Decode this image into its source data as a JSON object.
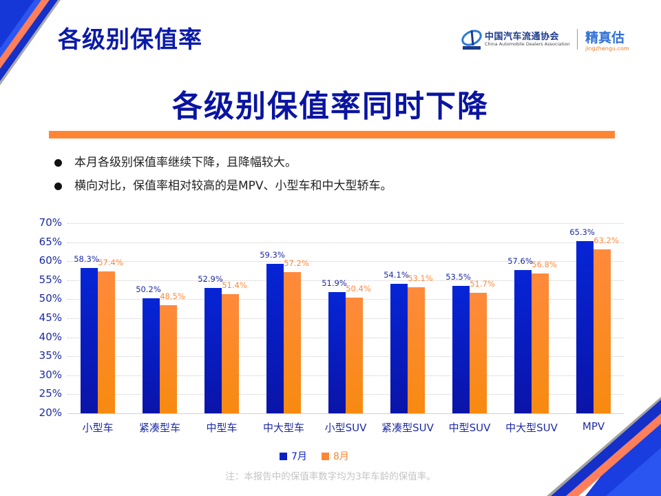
{
  "header": {
    "section_title": "各级别保值率",
    "logos": {
      "association_cn": "中国汽车流通协会",
      "association_en": "China Automobile Dealers Association",
      "association_mark": "CADA",
      "brand_cn": "精真估",
      "brand_en": "jingzhengu.com"
    }
  },
  "main_title": "各级别保值率同时下降",
  "bullets": [
    "本月各级别保值率继续下降，且降幅较大。",
    "横向对比，保值率相对较高的是MPV、小型车和中大型轿车。"
  ],
  "colors": {
    "jul": "#0a1fc8",
    "aug": "#ff8534",
    "title": "#0a14a0",
    "accent_rule": "#ff8534"
  },
  "chart_data": {
    "type": "bar",
    "title": "",
    "xlabel": "",
    "ylabel": "",
    "categories": [
      "小型车",
      "紧凑型车",
      "中型车",
      "中大型车",
      "小型SUV",
      "紧凑型SUV",
      "中型SUV",
      "中大型SUV",
      "MPV"
    ],
    "series": [
      {
        "name": "7月",
        "values": [
          58.3,
          50.2,
          52.9,
          59.3,
          51.9,
          54.1,
          53.5,
          57.6,
          65.3
        ],
        "labels": [
          "58.3%",
          "50.2%",
          "52.9%",
          "59.3%",
          "51.9%",
          "54.1%",
          "53.5%",
          "57.6%",
          "65.3%"
        ]
      },
      {
        "name": "8月",
        "values": [
          57.4,
          48.5,
          51.4,
          57.2,
          50.4,
          53.1,
          51.7,
          56.8,
          63.2
        ],
        "labels": [
          "57.4%",
          "48.5%",
          "51.4%",
          "57.2%",
          "50.4%",
          "53.1%",
          "51.7%",
          "56.8%",
          "63.2%"
        ]
      }
    ],
    "yticks": [
      "70%",
      "65%",
      "60%",
      "55%",
      "50%",
      "45%",
      "40%",
      "35%",
      "30%",
      "25%",
      "20%"
    ],
    "ylim": [
      20,
      70
    ],
    "grid": true,
    "legend_position": "bottom"
  },
  "legend": [
    {
      "label": "7月"
    },
    {
      "label": "8月"
    }
  ],
  "footnote": "注：本报告中的保值率数字均为3年车龄的保值率。"
}
